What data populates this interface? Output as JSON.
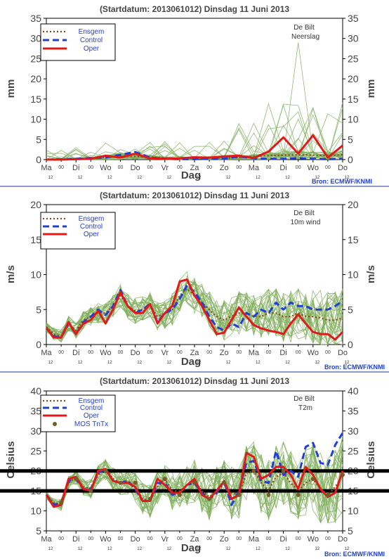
{
  "colors": {
    "ensemble": "#7fae5a",
    "ensgem": "#8b4513",
    "control": "#1f3fd6",
    "oper": "#e01a1a",
    "mos": "#7a5a2a",
    "axis_text": "#444444",
    "divider": "#1a3a8a",
    "source": "#1f3fd6"
  },
  "x_axis": {
    "label": "Dag",
    "day_ticks": [
      "Ma",
      "Di",
      "Wo",
      "Do",
      "Vr",
      "Za",
      "Zo",
      "Ma",
      "Di",
      "Wo",
      "Do"
    ],
    "midnight_mark": "00",
    "hour_mark": "12"
  },
  "legend_labels": {
    "ensgem": "Ensgem",
    "control": "Control",
    "oper": "Oper",
    "mos": "MOS TnTx"
  },
  "source": "Bron: ECMWF/KNMI",
  "chart_data": [
    {
      "type": "line",
      "title": "(Startdatum: 2013061012)   Dinsdag    11 Juni       2013",
      "station": "De Bilt",
      "variable": "Neerslag",
      "ylabel": "mm",
      "ylim": [
        0,
        35
      ],
      "yticks": [
        "0",
        "5",
        "10",
        "15",
        "20",
        "25",
        "30",
        "35"
      ],
      "x_days": [
        0,
        10
      ],
      "series": [
        {
          "name": "Ensgem",
          "x": [
            0,
            0.5,
            1,
            1.5,
            2,
            2.5,
            3,
            3.5,
            4,
            4.5,
            5,
            5.5,
            6,
            6.5,
            7,
            7.5,
            8,
            8.5,
            9,
            9.5,
            10
          ],
          "y": [
            0,
            0.1,
            0.2,
            0.3,
            0.6,
            0.9,
            0.8,
            0.6,
            0.4,
            0.3,
            0.3,
            0.4,
            0.4,
            0.5,
            0.8,
            1.0,
            1.1,
            1.2,
            1.1,
            1.0,
            1.2
          ]
        },
        {
          "name": "Control",
          "x": [
            0,
            0.5,
            1,
            1.5,
            2,
            2.5,
            3,
            3.5,
            4,
            4.5,
            5,
            5.5,
            6,
            6.5,
            7,
            7.5,
            8,
            8.5,
            9,
            9.5,
            10
          ],
          "y": [
            0,
            0.1,
            0.2,
            0.4,
            0.5,
            1.2,
            1.9,
            0.5,
            0.2,
            0.1,
            0.1,
            0.3,
            0.2,
            0.8,
            0.3,
            0.2,
            0.2,
            0.4,
            0.2,
            0.1,
            0.2
          ]
        },
        {
          "name": "Oper",
          "x": [
            0,
            0.5,
            1,
            1.5,
            2,
            2.5,
            3,
            3.5,
            4,
            4.5,
            5,
            5.5,
            6,
            6.5,
            7,
            7.5,
            8,
            8.5,
            9,
            9.5,
            10
          ],
          "y": [
            0,
            0,
            0.1,
            0.2,
            1.0,
            0.5,
            1.5,
            0.3,
            0.2,
            0.3,
            0.6,
            0.5,
            0.8,
            1.0,
            0.4,
            2.0,
            5.5,
            1.5,
            6.0,
            0.5,
            3.5
          ]
        }
      ],
      "ensemble_range": [
        0,
        29
      ]
    },
    {
      "type": "line",
      "title": "(Startdatum: 2013061012)   Dinsdag    11 Juni       2013",
      "station": "De Bilt",
      "variable": "10m wind",
      "ylabel": "m/s",
      "ylim": [
        0,
        20
      ],
      "yticks": [
        "0",
        "5",
        "10",
        "15",
        "20"
      ],
      "x_days": [
        0,
        10
      ],
      "series": [
        {
          "name": "Ensgem",
          "x": [
            0,
            0.25,
            0.5,
            0.75,
            1,
            1.25,
            1.5,
            1.75,
            2,
            2.25,
            2.5,
            2.75,
            3,
            3.25,
            3.5,
            3.75,
            4,
            4.25,
            4.5,
            4.75,
            5,
            5.25,
            5.5,
            5.75,
            6,
            6.25,
            6.5,
            6.75,
            7,
            7.25,
            7.5,
            7.75,
            8,
            8.25,
            8.5,
            8.75,
            9,
            9.25,
            9.5,
            9.75,
            10
          ],
          "y": [
            2.5,
            1.5,
            1.2,
            3.0,
            2.0,
            3.5,
            4.0,
            4.5,
            4.5,
            5.5,
            7.0,
            5.5,
            4.8,
            5.0,
            5.5,
            4.0,
            4.5,
            5.0,
            7.0,
            8.0,
            7.0,
            6.0,
            5.0,
            4.0,
            3.5,
            4.0,
            4.5,
            4.5,
            4.0,
            4.0,
            4.5,
            4.5,
            4.0,
            4.0,
            4.5,
            4.0,
            4.0,
            3.8,
            3.5,
            3.5,
            3.8
          ]
        },
        {
          "name": "Control",
          "x": [
            0,
            0.25,
            0.5,
            0.75,
            1,
            1.25,
            1.5,
            1.75,
            2,
            2.25,
            2.5,
            2.75,
            3,
            3.25,
            3.5,
            3.75,
            4,
            4.25,
            4.5,
            4.75,
            5,
            5.25,
            5.5,
            5.75,
            6,
            6.25,
            6.5,
            6.75,
            7,
            7.25,
            7.5,
            7.75,
            8,
            8.25,
            8.5,
            8.75,
            9,
            9.25,
            9.5,
            9.75,
            10
          ],
          "y": [
            2.3,
            1.2,
            1.0,
            3.0,
            1.5,
            3.2,
            4.0,
            5.0,
            4.2,
            5.5,
            7.8,
            5.5,
            4.5,
            5.0,
            5.8,
            3.2,
            4.5,
            5.0,
            6.5,
            8.5,
            7.5,
            6.0,
            4.0,
            2.5,
            2.0,
            3.0,
            2.5,
            4.5,
            4.0,
            5.0,
            4.5,
            6.0,
            5.0,
            6.0,
            5.5,
            5.5,
            5.0,
            5.0,
            5.0,
            5.5,
            6.2
          ]
        },
        {
          "name": "Oper",
          "x": [
            0,
            0.25,
            0.5,
            0.75,
            1,
            1.25,
            1.5,
            1.75,
            2,
            2.25,
            2.5,
            2.75,
            3,
            3.25,
            3.5,
            3.75,
            4,
            4.25,
            4.5,
            4.75,
            5,
            5.25,
            5.5,
            5.75,
            6,
            6.25,
            6.5,
            6.75,
            7,
            7.25,
            7.5,
            7.75,
            8,
            8.25,
            8.5,
            8.75,
            9,
            9.25,
            9.5,
            9.75,
            10
          ],
          "y": [
            2.4,
            1.0,
            1.0,
            3.2,
            1.5,
            3.0,
            3.5,
            4.8,
            3.0,
            5.0,
            7.5,
            5.5,
            4.5,
            4.5,
            5.8,
            3.0,
            4.5,
            5.5,
            9.0,
            9.3,
            7.0,
            5.5,
            3.5,
            1.5,
            1.7,
            3.5,
            5.3,
            4.0,
            2.8,
            2.3,
            2.0,
            1.8,
            1.5,
            3.0,
            4.3,
            3.0,
            1.8,
            1.5,
            1.5,
            0.7,
            1.8
          ]
        }
      ],
      "ensemble_range": [
        0,
        14
      ]
    },
    {
      "type": "line",
      "title": "(Startdatum: 2013061012)   Dinsdag    11 Juni       2013",
      "station": "De Bilt",
      "variable": "T2m",
      "ylabel": "Celsius",
      "ylim": [
        5,
        40
      ],
      "yticks": [
        "5",
        "10",
        "15",
        "20",
        "25",
        "30",
        "35",
        "40"
      ],
      "x_days": [
        0,
        10
      ],
      "reference_lines": [
        15,
        20
      ],
      "series": [
        {
          "name": "Ensgem",
          "x": [
            0,
            0.25,
            0.5,
            0.75,
            1,
            1.25,
            1.5,
            1.75,
            2,
            2.25,
            2.5,
            2.75,
            3,
            3.25,
            3.5,
            3.75,
            4,
            4.25,
            4.5,
            4.75,
            5,
            5.25,
            5.5,
            5.75,
            6,
            6.25,
            6.5,
            6.75,
            7,
            7.25,
            7.5,
            7.75,
            8,
            8.25,
            8.5,
            8.75,
            9,
            9.25,
            9.5,
            9.75,
            10
          ],
          "y": [
            14,
            12,
            11.5,
            17,
            18.5,
            16,
            15.5,
            19,
            20.5,
            18,
            17,
            17.5,
            16,
            13,
            12.5,
            16,
            18,
            15,
            15,
            16.5,
            17.5,
            15,
            13.5,
            15,
            16.5,
            14.5,
            14,
            19.5,
            20,
            17,
            15,
            18.5,
            19.5,
            17,
            15,
            17,
            18,
            15.5,
            14,
            16,
            19
          ]
        },
        {
          "name": "Control",
          "x": [
            0,
            0.25,
            0.5,
            0.75,
            1,
            1.25,
            1.5,
            1.75,
            2,
            2.25,
            2.5,
            2.75,
            3,
            3.25,
            3.5,
            3.75,
            4,
            4.25,
            4.5,
            4.75,
            5,
            5.25,
            5.5,
            5.75,
            6,
            6.25,
            6.5,
            6.75,
            7,
            7.25,
            7.5,
            7.75,
            8,
            8.25,
            8.5,
            8.75,
            9,
            9.25,
            9.5,
            9.75,
            10
          ],
          "y": [
            14,
            11.5,
            12,
            17.5,
            18,
            15.5,
            15.5,
            19.5,
            20.5,
            17.5,
            17,
            17.5,
            15.5,
            12.5,
            12.5,
            17,
            17,
            14,
            14.5,
            16.5,
            17,
            14.5,
            13,
            14.5,
            17.5,
            11.5,
            15,
            22,
            22.5,
            17.5,
            17,
            25,
            19,
            20,
            18.5,
            26,
            27,
            22,
            21.5,
            26.5,
            29.5
          ]
        },
        {
          "name": "Oper",
          "x": [
            0,
            0.25,
            0.5,
            0.75,
            1,
            1.25,
            1.5,
            1.75,
            2,
            2.25,
            2.5,
            2.75,
            3,
            3.25,
            3.5,
            3.75,
            4,
            4.25,
            4.5,
            4.75,
            5,
            5.25,
            5.5,
            5.75,
            6,
            6.25,
            6.5,
            6.75,
            7,
            7.25,
            7.5,
            7.75,
            8,
            8.25,
            8.5,
            8.75,
            9,
            9.25,
            9.5,
            9.75,
            10
          ],
          "y": [
            14,
            11,
            11.5,
            18,
            18.5,
            15.5,
            15,
            20,
            20.5,
            17.5,
            17,
            17,
            16,
            12.5,
            12.5,
            18,
            16.5,
            14.5,
            14.5,
            16.5,
            18,
            14,
            13,
            15,
            17.5,
            13,
            14,
            24.5,
            23.5,
            18,
            19,
            21,
            21,
            19,
            15.5,
            21,
            19,
            15.5,
            13.5,
            14.5,
            20
          ]
        }
      ],
      "mos_tntx": {
        "x": [
          0.5,
          1,
          1.5,
          2,
          2.5,
          3,
          3.5,
          4,
          4.5,
          5,
          5.5,
          6,
          6.5,
          7,
          7.5,
          8,
          8.5,
          9,
          9.5,
          10
        ],
        "y": [
          12,
          18,
          15,
          20,
          17,
          17,
          13,
          18,
          14,
          17,
          13,
          17,
          14,
          20,
          14,
          20,
          14,
          18,
          14,
          19
        ]
      },
      "ensemble_range": [
        7,
        31
      ]
    }
  ]
}
